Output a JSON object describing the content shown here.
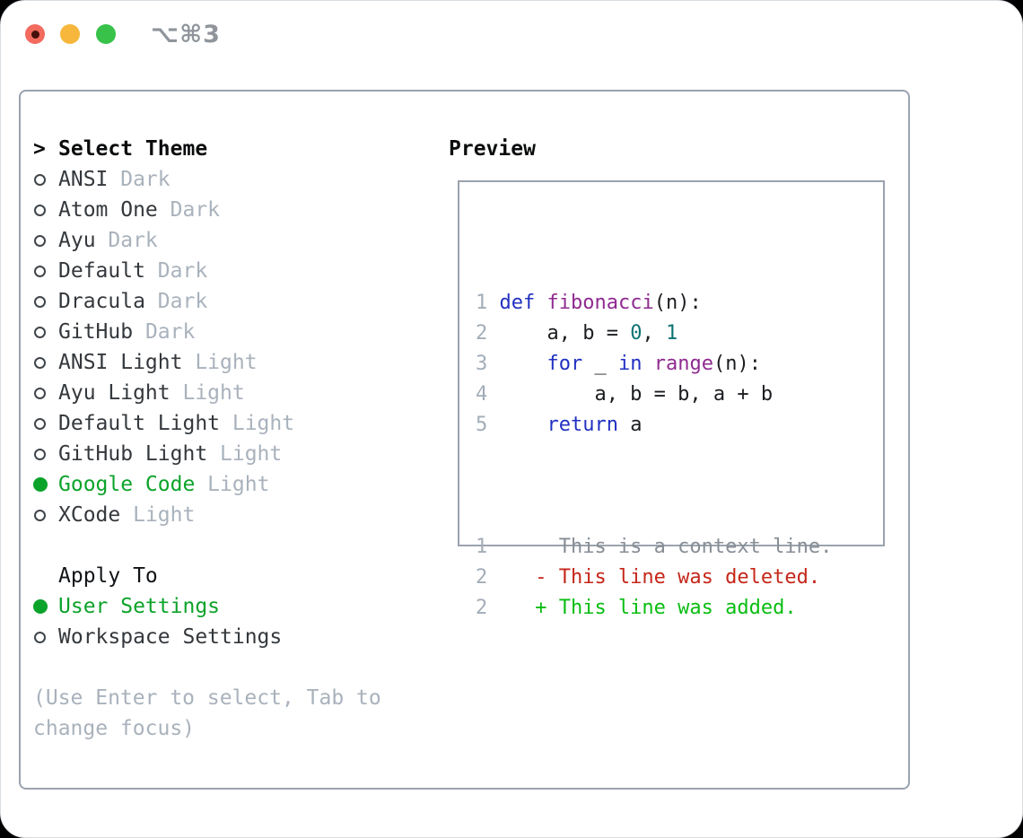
{
  "titlebar": {
    "shortcut": "⌥⌘3"
  },
  "theme_picker": {
    "marker": ">",
    "title": "Select Theme",
    "items": [
      {
        "name": "ANSI",
        "variant": "Dark",
        "selected": false
      },
      {
        "name": "Atom One",
        "variant": "Dark",
        "selected": false
      },
      {
        "name": "Ayu",
        "variant": "Dark",
        "selected": false
      },
      {
        "name": "Default",
        "variant": "Dark",
        "selected": false
      },
      {
        "name": "Dracula",
        "variant": "Dark",
        "selected": false
      },
      {
        "name": "GitHub",
        "variant": "Dark",
        "selected": false
      },
      {
        "name": "ANSI Light",
        "variant": "Light",
        "selected": false
      },
      {
        "name": "Ayu Light",
        "variant": "Light",
        "selected": false
      },
      {
        "name": "Default Light",
        "variant": "Light",
        "selected": false
      },
      {
        "name": "GitHub Light",
        "variant": "Light",
        "selected": false
      },
      {
        "name": "Google Code",
        "variant": "Light",
        "selected": true
      },
      {
        "name": "XCode",
        "variant": "Light",
        "selected": false
      }
    ],
    "apply_to": {
      "title": "Apply To",
      "options": [
        {
          "label": "User Settings",
          "selected": true
        },
        {
          "label": "Workspace Settings",
          "selected": false
        }
      ]
    },
    "hint_lines": [
      "(Use Enter to select, Tab to",
      "change focus)"
    ]
  },
  "preview": {
    "title": "Preview",
    "code_lines": [
      {
        "number": "1",
        "tokens": [
          {
            "style": "keyword",
            "text": "def"
          },
          {
            "style": "plain",
            "text": " "
          },
          {
            "style": "function",
            "text": "fibonacci"
          },
          {
            "style": "plain",
            "text": "(n):"
          }
        ]
      },
      {
        "number": "2",
        "tokens": [
          {
            "style": "plain",
            "text": "    a, b = "
          },
          {
            "style": "number",
            "text": "0"
          },
          {
            "style": "plain",
            "text": ", "
          },
          {
            "style": "number",
            "text": "1"
          }
        ]
      },
      {
        "number": "3",
        "tokens": [
          {
            "style": "plain",
            "text": "    "
          },
          {
            "style": "keyword",
            "text": "for"
          },
          {
            "style": "plain",
            "text": " _ "
          },
          {
            "style": "keyword",
            "text": "in"
          },
          {
            "style": "plain",
            "text": " "
          },
          {
            "style": "function",
            "text": "range"
          },
          {
            "style": "plain",
            "text": "(n):"
          }
        ]
      },
      {
        "number": "4",
        "tokens": [
          {
            "style": "plain",
            "text": "        a, b = b, a + b"
          }
        ]
      },
      {
        "number": "5",
        "tokens": [
          {
            "style": "plain",
            "text": "    "
          },
          {
            "style": "keyword",
            "text": "return"
          },
          {
            "style": "plain",
            "text": " a"
          }
        ]
      }
    ],
    "diff_lines": [
      {
        "number": "1",
        "kind": "context",
        "text": "     This is a context line."
      },
      {
        "number": "2",
        "kind": "deleted",
        "text": "   - This line was deleted."
      },
      {
        "number": "2",
        "kind": "added",
        "text": "   + This line was added."
      }
    ]
  },
  "colors": {
    "border": "#9aa3ad",
    "ink": "#34383c",
    "muted": "#a9b2bc",
    "green": "#0ca32a",
    "keyword": "#2130c2",
    "function": "#8f2a90",
    "number": "#0e7373",
    "code_plain": "#1b1d20",
    "line_number": "#a3adb8",
    "context": "#878e96",
    "deleted": "#c5261a",
    "added": "#0abd12",
    "title_gray": "#8f959b",
    "traffic_red": "#f26b5e",
    "traffic_red_dot": "#45100a",
    "traffic_yellow": "#f6b73c",
    "traffic_green": "#38c24a"
  }
}
